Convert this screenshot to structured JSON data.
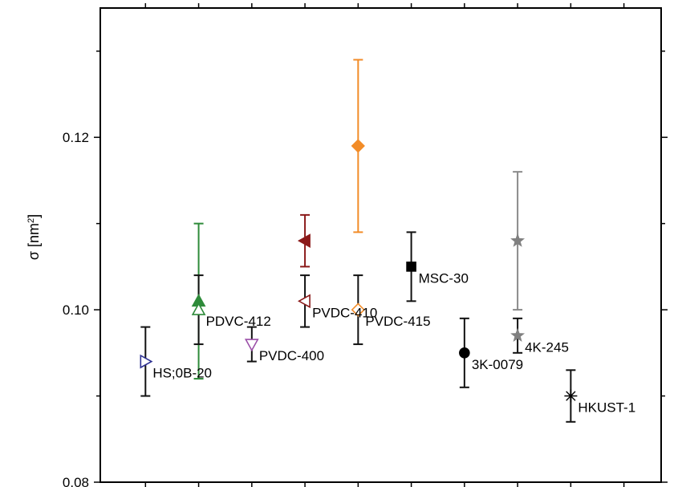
{
  "chart_data": {
    "type": "scatter",
    "title": "",
    "xlabel": "",
    "ylabel": "σ [nm",
    "ylabel_superscript": "2",
    "ylabel_suffix": "]",
    "ylim": [
      0.08,
      0.135
    ],
    "xlim": [
      0.15,
      10.7
    ],
    "y_ticks": [
      {
        "value": 0.08,
        "label": "0.08"
      },
      {
        "value": 0.1,
        "label": "0.10"
      },
      {
        "value": 0.12,
        "label": "0.12"
      }
    ],
    "y_minor_ticks": [
      0.09,
      0.11,
      0.13
    ],
    "x_ticks": [
      1,
      2,
      3,
      4,
      5,
      6,
      7,
      8,
      9,
      10
    ],
    "grid": false,
    "legend": "none",
    "points": [
      {
        "x": 1,
        "y": 0.094,
        "y_low": 0.09,
        "y_high": 0.098,
        "marker": "triangle-right-open",
        "color": "#2e3192",
        "err_color": "#111111",
        "label": "HS;0B-20"
      },
      {
        "x": 2,
        "y": 0.101,
        "y_low": 0.092,
        "y_high": 0.11,
        "marker": "triangle-up",
        "color": "#2e8b3a",
        "err_color": "#2e8b3a",
        "label": ""
      },
      {
        "x": 2,
        "y": 0.1,
        "y_low": 0.096,
        "y_high": 0.104,
        "marker": "triangle-up-open",
        "color": "#2e8b3a",
        "err_color": "#111111",
        "label": "PDVC-412"
      },
      {
        "x": 3,
        "y": 0.096,
        "y_low": 0.094,
        "y_high": 0.098,
        "marker": "triangle-down-open",
        "color": "#9b4fa8",
        "err_color": "#111111",
        "label": "PVDC-400"
      },
      {
        "x": 4,
        "y": 0.108,
        "y_low": 0.105,
        "y_high": 0.111,
        "marker": "triangle-left",
        "color": "#8b1a1a",
        "err_color": "#8b1a1a",
        "label": ""
      },
      {
        "x": 4,
        "y": 0.101,
        "y_low": 0.098,
        "y_high": 0.104,
        "marker": "triangle-left-open",
        "color": "#8b1a1a",
        "err_color": "#111111",
        "label": "PVDC-410"
      },
      {
        "x": 5,
        "y": 0.119,
        "y_low": 0.109,
        "y_high": 0.129,
        "marker": "diamond",
        "color": "#f28c28",
        "err_color": "#f28c28",
        "label": ""
      },
      {
        "x": 5,
        "y": 0.1,
        "y_low": 0.096,
        "y_high": 0.104,
        "marker": "diamond-open",
        "color": "#f28c28",
        "err_color": "#111111",
        "label": "PVDC-415"
      },
      {
        "x": 6,
        "y": 0.105,
        "y_low": 0.101,
        "y_high": 0.109,
        "marker": "square",
        "color": "#000000",
        "err_color": "#111111",
        "label": "MSC-30"
      },
      {
        "x": 7,
        "y": 0.095,
        "y_low": 0.091,
        "y_high": 0.099,
        "marker": "circle",
        "color": "#000000",
        "err_color": "#111111",
        "label": "3K-0079"
      },
      {
        "x": 8,
        "y": 0.108,
        "y_low": 0.1,
        "y_high": 0.116,
        "marker": "star",
        "color": "#808080",
        "err_color": "#8a8a8a",
        "label": ""
      },
      {
        "x": 8,
        "y": 0.097,
        "y_low": 0.095,
        "y_high": 0.099,
        "marker": "star",
        "color": "#808080",
        "err_color": "#111111",
        "label": "4K-245"
      },
      {
        "x": 9,
        "y": 0.09,
        "y_low": 0.087,
        "y_high": 0.093,
        "marker": "asterisk",
        "color": "#000000",
        "err_color": "#111111",
        "label": "HKUST-1"
      }
    ]
  }
}
